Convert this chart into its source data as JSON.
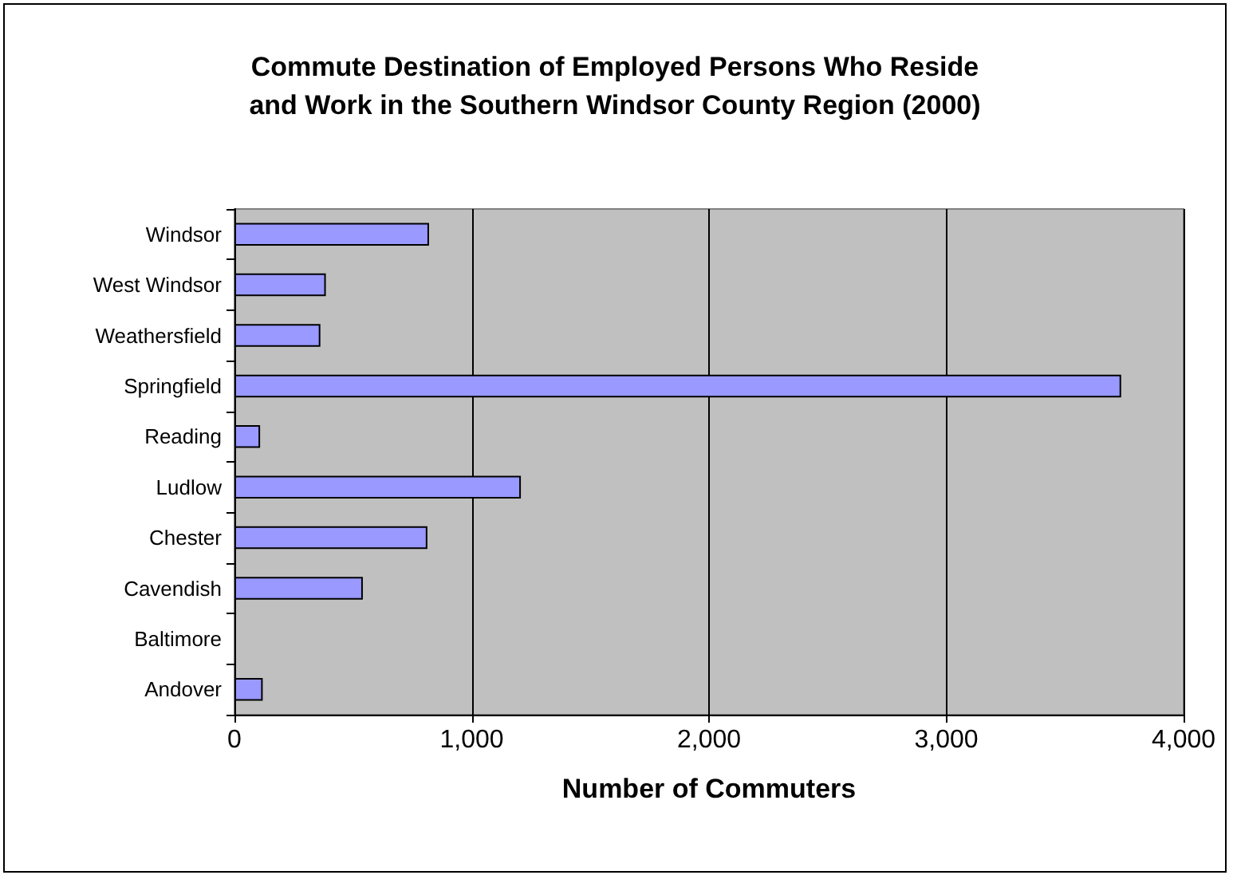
{
  "chart_data": {
    "type": "bar",
    "orientation": "horizontal",
    "title": "Commute Destination of Employed Persons Who Reside\nand Work in the Southern Windsor County Region (2000)",
    "xlabel": "Number of Commuters",
    "categories": [
      "Windsor",
      "West Windsor",
      "Weathersfield",
      "Springfield",
      "Reading",
      "Ludlow",
      "Chester",
      "Cavendish",
      "Baltimore",
      "Andover"
    ],
    "values": [
      820,
      385,
      362,
      3737,
      108,
      1207,
      813,
      541,
      0,
      119
    ],
    "color": "#9999ff",
    "xlim": [
      0,
      4000
    ],
    "xticks": [
      {
        "value": 0,
        "label": "0"
      },
      {
        "value": 1000,
        "label": "1,000"
      },
      {
        "value": 2000,
        "label": "2,000"
      },
      {
        "value": 3000,
        "label": "3,000"
      },
      {
        "value": 4000,
        "label": "4,000"
      }
    ],
    "grid": "x"
  }
}
